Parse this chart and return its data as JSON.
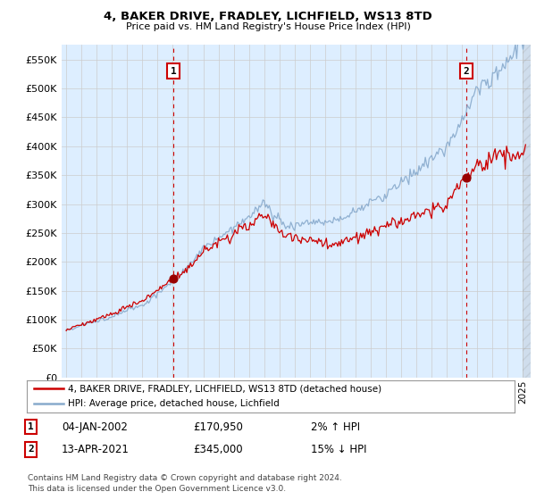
{
  "title": "4, BAKER DRIVE, FRADLEY, LICHFIELD, WS13 8TD",
  "subtitle": "Price paid vs. HM Land Registry's House Price Index (HPI)",
  "ylim": [
    0,
    575000
  ],
  "yticks": [
    0,
    50000,
    100000,
    150000,
    200000,
    250000,
    300000,
    350000,
    400000,
    450000,
    500000,
    550000
  ],
  "xlim_start": 1994.7,
  "xlim_end": 2025.5,
  "ann1_x": 2002.04,
  "ann1_y": 170950,
  "ann2_x": 2021.28,
  "ann2_y": 345000,
  "ann1_date": "04-JAN-2002",
  "ann1_price": "£170,950",
  "ann1_hpi": "2% ↑ HPI",
  "ann2_date": "13-APR-2021",
  "ann2_price": "£345,000",
  "ann2_hpi": "15% ↓ HPI",
  "legend_line1": "4, BAKER DRIVE, FRADLEY, LICHFIELD, WS13 8TD (detached house)",
  "legend_line2": "HPI: Average price, detached house, Lichfield",
  "footer": "Contains HM Land Registry data © Crown copyright and database right 2024.\nThis data is licensed under the Open Government Licence v3.0.",
  "line_color_red": "#cc0000",
  "line_color_blue": "#88aacc",
  "dot_color": "#990000",
  "vline_color": "#cc0000",
  "grid_color": "#cccccc",
  "background_color": "#ffffff",
  "plot_bg_color": "#ddeeff"
}
